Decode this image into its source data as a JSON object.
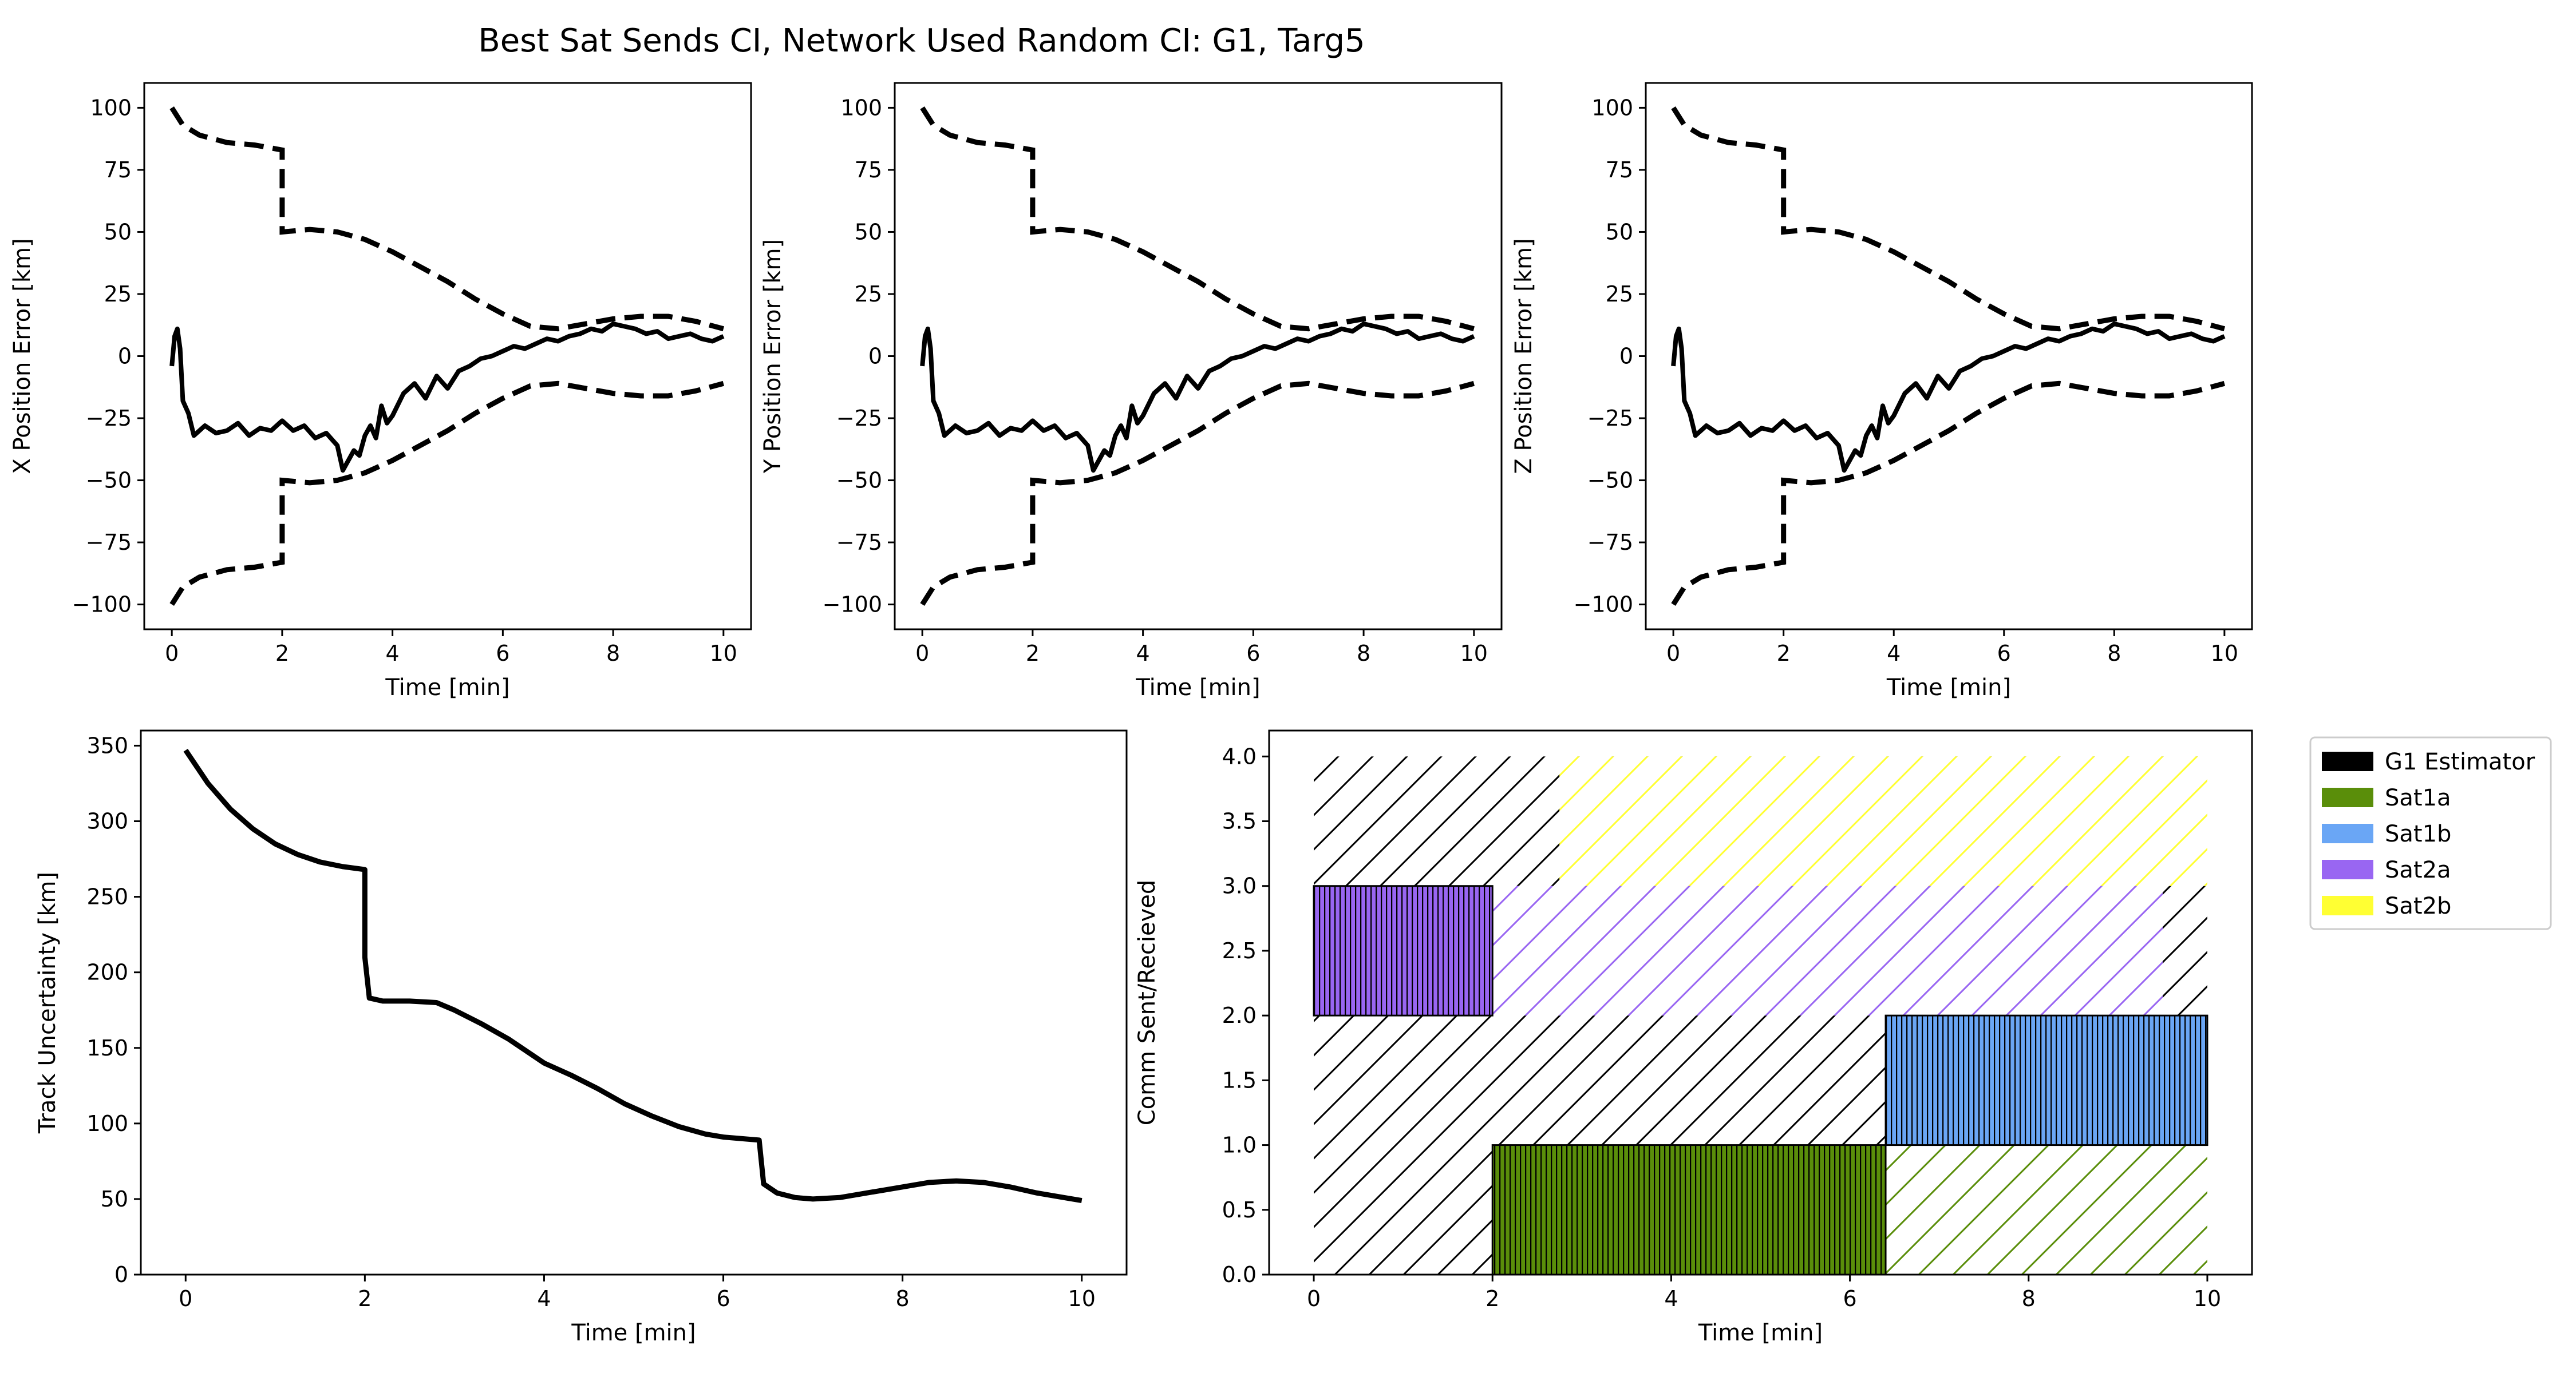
{
  "title": "Best Sat Sends CI, Network Used Random CI: G1, Targ5",
  "chart_data": [
    {
      "id": "x",
      "type": "line",
      "xlabel": "Time [min]",
      "ylabel": "X Position Error [km]",
      "xlim": [
        -0.5,
        10.5
      ],
      "ylim": [
        -110,
        110
      ],
      "xticks": [
        0,
        2,
        4,
        6,
        8,
        10
      ],
      "yticks": [
        -100,
        -75,
        -50,
        -25,
        0,
        25,
        50,
        75,
        100
      ],
      "bound_x": [
        0,
        0.2,
        0.5,
        1.0,
        1.5,
        2.0,
        2.0,
        2.5,
        3.0,
        3.5,
        4.0,
        4.5,
        5.0,
        5.5,
        6.0,
        6.5,
        7.0,
        7.5,
        8.0,
        8.5,
        9.0,
        9.5,
        10.0
      ],
      "bound_upper": [
        100,
        93,
        89,
        86,
        85,
        83,
        50,
        51,
        50,
        47,
        42,
        36,
        30,
        23,
        17,
        12,
        11,
        13,
        15,
        16,
        16,
        14,
        11
      ],
      "error_x": [
        0,
        0.05,
        0.1,
        0.15,
        0.2,
        0.3,
        0.4,
        0.5,
        0.6,
        0.8,
        1.0,
        1.2,
        1.4,
        1.6,
        1.8,
        2.0,
        2.2,
        2.4,
        2.6,
        2.8,
        3.0,
        3.1,
        3.2,
        3.3,
        3.4,
        3.5,
        3.6,
        3.7,
        3.8,
        3.9,
        4.0,
        4.2,
        4.4,
        4.6,
        4.8,
        5.0,
        5.2,
        5.4,
        5.6,
        5.8,
        6.0,
        6.2,
        6.4,
        6.6,
        6.8,
        7.0,
        7.2,
        7.4,
        7.6,
        7.8,
        8.0,
        8.2,
        8.4,
        8.6,
        8.8,
        9.0,
        9.2,
        9.4,
        9.6,
        9.8,
        10.0
      ],
      "error_y": [
        -4,
        8,
        11,
        3,
        -18,
        -23,
        -32,
        -30,
        -28,
        -31,
        -30,
        -27,
        -32,
        -29,
        -30,
        -26,
        -30,
        -28,
        -33,
        -31,
        -36,
        -46,
        -42,
        -38,
        -40,
        -32,
        -28,
        -33,
        -20,
        -27,
        -24,
        -15,
        -11,
        -17,
        -8,
        -13,
        -6,
        -4,
        -1,
        0,
        2,
        4,
        3,
        5,
        7,
        6,
        8,
        9,
        11,
        10,
        13,
        12,
        11,
        9,
        10,
        7,
        8,
        9,
        7,
        6,
        8
      ]
    },
    {
      "id": "y",
      "type": "line",
      "xlabel": "Time [min]",
      "ylabel": "Y Position Error [km]",
      "xlim": [
        -0.5,
        10.5
      ],
      "ylim": [
        -110,
        110
      ],
      "xticks": [
        0,
        2,
        4,
        6,
        8,
        10
      ],
      "yticks": [
        -100,
        -75,
        -50,
        -25,
        0,
        25,
        50,
        75,
        100
      ],
      "bound_x": [
        0,
        0.2,
        0.5,
        1.0,
        1.5,
        2.0,
        2.0,
        2.5,
        3.0,
        3.5,
        4.0,
        4.5,
        5.0,
        5.5,
        6.0,
        6.5,
        7.0,
        7.5,
        8.0,
        8.5,
        9.0,
        9.5,
        10.0
      ],
      "bound_upper": [
        100,
        93,
        89,
        86,
        85,
        83,
        50,
        51,
        50,
        47,
        42,
        36,
        30,
        23,
        17,
        12,
        11,
        13,
        15,
        16,
        16,
        14,
        11
      ],
      "error_x": [
        0,
        0.05,
        0.1,
        0.15,
        0.2,
        0.3,
        0.4,
        0.5,
        0.6,
        0.8,
        1.0,
        1.2,
        1.4,
        1.6,
        1.8,
        2.0,
        2.2,
        2.4,
        2.6,
        2.8,
        3.0,
        3.1,
        3.2,
        3.3,
        3.4,
        3.5,
        3.6,
        3.7,
        3.8,
        3.9,
        4.0,
        4.2,
        4.4,
        4.6,
        4.8,
        5.0,
        5.2,
        5.4,
        5.6,
        5.8,
        6.0,
        6.2,
        6.4,
        6.6,
        6.8,
        7.0,
        7.2,
        7.4,
        7.6,
        7.8,
        8.0,
        8.2,
        8.4,
        8.6,
        8.8,
        9.0,
        9.2,
        9.4,
        9.6,
        9.8,
        10.0
      ],
      "error_y": [
        -4,
        8,
        11,
        3,
        -18,
        -23,
        -32,
        -30,
        -28,
        -31,
        -30,
        -27,
        -32,
        -29,
        -30,
        -26,
        -30,
        -28,
        -33,
        -31,
        -36,
        -46,
        -42,
        -38,
        -40,
        -32,
        -28,
        -33,
        -20,
        -27,
        -24,
        -15,
        -11,
        -17,
        -8,
        -13,
        -6,
        -4,
        -1,
        0,
        2,
        4,
        3,
        5,
        7,
        6,
        8,
        9,
        11,
        10,
        13,
        12,
        11,
        9,
        10,
        7,
        8,
        9,
        7,
        6,
        8
      ]
    },
    {
      "id": "z",
      "type": "line",
      "xlabel": "Time [min]",
      "ylabel": "Z Position Error [km]",
      "xlim": [
        -0.5,
        10.5
      ],
      "ylim": [
        -110,
        110
      ],
      "xticks": [
        0,
        2,
        4,
        6,
        8,
        10
      ],
      "yticks": [
        -100,
        -75,
        -50,
        -25,
        0,
        25,
        50,
        75,
        100
      ],
      "bound_x": [
        0,
        0.2,
        0.5,
        1.0,
        1.5,
        2.0,
        2.0,
        2.5,
        3.0,
        3.5,
        4.0,
        4.5,
        5.0,
        5.5,
        6.0,
        6.5,
        7.0,
        7.5,
        8.0,
        8.5,
        9.0,
        9.5,
        10.0
      ],
      "bound_upper": [
        100,
        93,
        89,
        86,
        85,
        83,
        50,
        51,
        50,
        47,
        42,
        36,
        30,
        23,
        17,
        12,
        11,
        13,
        15,
        16,
        16,
        14,
        11
      ],
      "error_x": [
        0,
        0.05,
        0.1,
        0.15,
        0.2,
        0.3,
        0.4,
        0.5,
        0.6,
        0.8,
        1.0,
        1.2,
        1.4,
        1.6,
        1.8,
        2.0,
        2.2,
        2.4,
        2.6,
        2.8,
        3.0,
        3.1,
        3.2,
        3.3,
        3.4,
        3.5,
        3.6,
        3.7,
        3.8,
        3.9,
        4.0,
        4.2,
        4.4,
        4.6,
        4.8,
        5.0,
        5.2,
        5.4,
        5.6,
        5.8,
        6.0,
        6.2,
        6.4,
        6.6,
        6.8,
        7.0,
        7.2,
        7.4,
        7.6,
        7.8,
        8.0,
        8.2,
        8.4,
        8.6,
        8.8,
        9.0,
        9.2,
        9.4,
        9.6,
        9.8,
        10.0
      ],
      "error_y": [
        -4,
        8,
        11,
        3,
        -18,
        -23,
        -32,
        -30,
        -28,
        -31,
        -30,
        -27,
        -32,
        -29,
        -30,
        -26,
        -30,
        -28,
        -33,
        -31,
        -36,
        -46,
        -42,
        -38,
        -40,
        -32,
        -28,
        -33,
        -20,
        -27,
        -24,
        -15,
        -11,
        -17,
        -8,
        -13,
        -6,
        -4,
        -1,
        0,
        2,
        4,
        3,
        5,
        7,
        6,
        8,
        9,
        11,
        10,
        13,
        12,
        11,
        9,
        10,
        7,
        8,
        9,
        7,
        6,
        8
      ]
    },
    {
      "id": "track",
      "type": "line",
      "xlabel": "Time [min]",
      "ylabel": "Track Uncertainty [km]",
      "xlim": [
        -0.5,
        10.5
      ],
      "ylim": [
        0,
        360
      ],
      "xticks": [
        0,
        2,
        4,
        6,
        8,
        10
      ],
      "yticks": [
        0,
        50,
        100,
        150,
        200,
        250,
        300,
        350
      ],
      "x": [
        0,
        0.25,
        0.5,
        0.75,
        1.0,
        1.25,
        1.5,
        1.75,
        2.0,
        2.0,
        2.05,
        2.2,
        2.5,
        2.8,
        3.0,
        3.3,
        3.6,
        4.0,
        4.3,
        4.6,
        4.9,
        5.2,
        5.5,
        5.8,
        6.0,
        6.2,
        6.4,
        6.45,
        6.6,
        6.8,
        7.0,
        7.3,
        7.6,
        8.0,
        8.3,
        8.6,
        8.9,
        9.2,
        9.5,
        9.8,
        10.0
      ],
      "y": [
        347,
        325,
        308,
        295,
        285,
        278,
        273,
        270,
        268,
        210,
        183,
        181,
        181,
        180,
        175,
        166,
        156,
        140,
        132,
        123,
        113,
        105,
        98,
        93,
        91,
        90,
        89,
        60,
        54,
        51,
        50,
        51,
        54,
        58,
        61,
        62,
        61,
        58,
        54,
        51,
        49
      ]
    },
    {
      "id": "comm",
      "type": "bar",
      "xlabel": "Time [min]",
      "ylabel": "Comm Sent/Recieved",
      "xlim": [
        -0.5,
        10.5
      ],
      "ylim": [
        0,
        4.2
      ],
      "xticks": [
        0,
        2,
        4,
        6,
        8,
        10
      ],
      "yticks": [
        "0.0",
        "0.5",
        "1.0",
        "1.5",
        "2.0",
        "2.5",
        "3.0",
        "3.5",
        "4.0"
      ],
      "legend_position": "outside-right",
      "legend": [
        {
          "label": "G1 Estimator",
          "color": "#000000"
        },
        {
          "label": "Sat1a",
          "color": "#5a8e0a"
        },
        {
          "label": "Sat1b",
          "color": "#6aa6f5"
        },
        {
          "label": "Sat2a",
          "color": "#9966f2"
        },
        {
          "label": "Sat2b",
          "color": "#ffff33"
        }
      ],
      "blocks": [
        {
          "agent": "G1 Estimator",
          "x0": 0,
          "x1": 10,
          "y0": 0,
          "y1": 4,
          "style": "hatch"
        },
        {
          "agent": "Sat2b",
          "x0": 2.75,
          "x1": 10,
          "y0": 3,
          "y1": 4,
          "style": "hatch"
        },
        {
          "agent": "Sat2a",
          "x0": 2.0,
          "x1": 9.5,
          "y0": 2,
          "y1": 3,
          "style": "hatch"
        },
        {
          "agent": "Sat1a",
          "x0": 6.4,
          "x1": 10,
          "y0": 0,
          "y1": 1,
          "style": "hatch"
        },
        {
          "agent": "Sat2a",
          "x0": 0,
          "x1": 2.0,
          "y0": 2,
          "y1": 3,
          "style": "solid"
        },
        {
          "agent": "Sat1a",
          "x0": 2.0,
          "x1": 6.4,
          "y0": 0,
          "y1": 1,
          "style": "solid"
        },
        {
          "agent": "Sat1b",
          "x0": 6.4,
          "x1": 10,
          "y0": 1,
          "y1": 2,
          "style": "solid"
        }
      ]
    }
  ]
}
